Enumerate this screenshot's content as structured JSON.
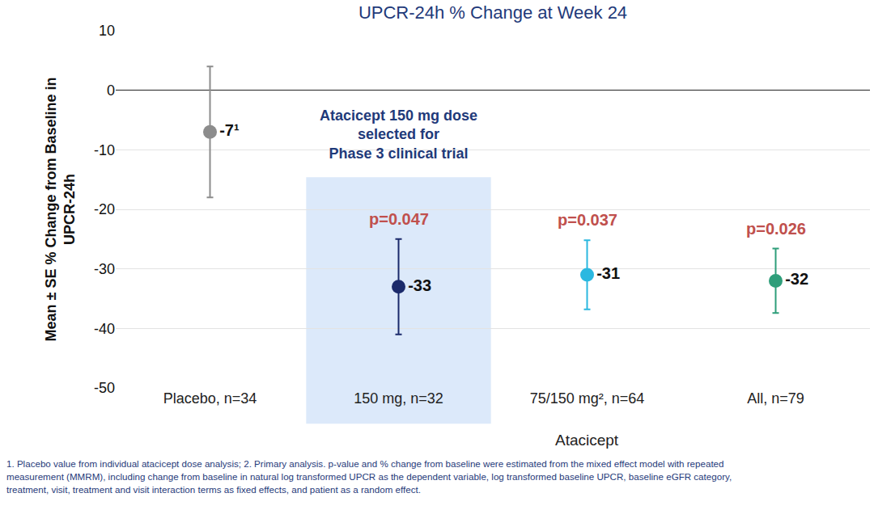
{
  "chart_data": {
    "type": "scatter",
    "title": "UPCR-24h % Change at Week 24",
    "y_label": [
      "Mean ± SE % Change from Baseline in",
      "UPCR-24h"
    ],
    "x_label": "Atacicept",
    "x_label_categories": [
      "150 mg, n=32",
      "75/150 mg², n=64",
      "All, n=79"
    ],
    "categories": [
      "Placebo, n=34",
      "150 mg, n=32",
      "75/150 mg², n=64",
      "All, n=79"
    ],
    "values": [
      -7,
      -33,
      -31,
      -32
    ],
    "value_labels": [
      "-7¹",
      "-33",
      "-31",
      "-32"
    ],
    "error": [
      11,
      8,
      5.8,
      5.4
    ],
    "colors": [
      "#8c8c8c",
      "#1b2a6b",
      "#2bb8e0",
      "#2e9e7a"
    ],
    "p_values": [
      null,
      "p=0.047",
      "p=0.037",
      "p=0.026"
    ],
    "highlight": {
      "category": "150 mg, n=32",
      "text": [
        "Atacicept 150 mg dose",
        "selected for",
        "Phase 3 clinical trial"
      ]
    },
    "footnote": [
      "1. Placebo value from individual atacicept dose analysis; 2. Primary analysis. p-value and % change from baseline were estimated from the mixed effect model with repeated",
      "measurement (MMRM), including change from baseline in natural log transformed UPCR as the dependent variable, log transformed baseline UPCR, baseline eGFR category,",
      "treatment, visit, treatment and visit interaction terms as fixed effects, and patient as a random effect."
    ],
    "ylim": [
      -50,
      10
    ],
    "yticks": [
      -50,
      -40,
      -30,
      -20,
      -10,
      0,
      10
    ],
    "grid": true,
    "data_labels": true,
    "marker": "circle"
  }
}
